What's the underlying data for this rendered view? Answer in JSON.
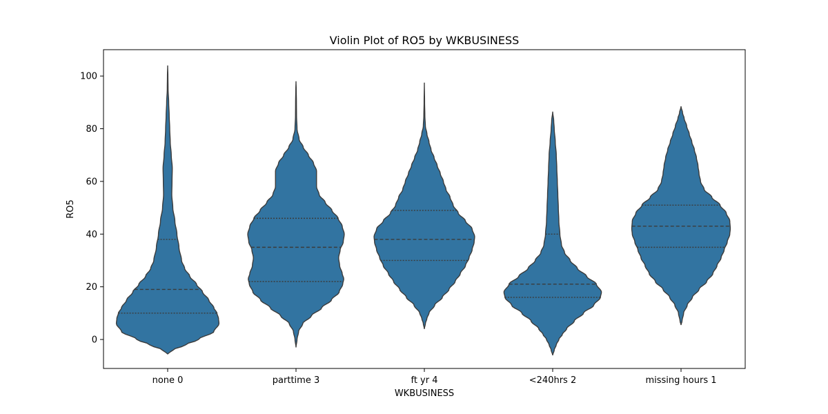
{
  "chart_data": {
    "type": "violin",
    "title": "Violin Plot of RO5 by WKBUSINESS",
    "xlabel": "WKBUSINESS",
    "ylabel": "RO5",
    "ylim": [
      -11,
      110
    ],
    "yticks": [
      0,
      20,
      40,
      60,
      80,
      100
    ],
    "categories": [
      "none 0",
      "parttime 3",
      "ft yr 4",
      "<240hrs 2",
      "missing hours 1"
    ],
    "fill_color": "#3274a1",
    "edge_color": "#3b3b3b",
    "grid": false,
    "violins": [
      {
        "category": "none 0",
        "min": -5.5,
        "max": 104,
        "q1": 10,
        "median": 19,
        "q3": 38,
        "profile": [
          [
            -5.5,
            0
          ],
          [
            -4,
            0.1
          ],
          [
            -2,
            0.35
          ],
          [
            0,
            0.6
          ],
          [
            3,
            0.9
          ],
          [
            6,
            1.0
          ],
          [
            8,
            0.99
          ],
          [
            10,
            0.96
          ],
          [
            12,
            0.9
          ],
          [
            15,
            0.8
          ],
          [
            18,
            0.68
          ],
          [
            21,
            0.56
          ],
          [
            24,
            0.43
          ],
          [
            27,
            0.33
          ],
          [
            30,
            0.27
          ],
          [
            35,
            0.22
          ],
          [
            40,
            0.18
          ],
          [
            45,
            0.14
          ],
          [
            50,
            0.1
          ],
          [
            55,
            0.08
          ],
          [
            60,
            0.085
          ],
          [
            65,
            0.09
          ],
          [
            70,
            0.07
          ],
          [
            75,
            0.05
          ],
          [
            80,
            0.04
          ],
          [
            85,
            0.03
          ],
          [
            90,
            0.02
          ],
          [
            95,
            0.008
          ],
          [
            100,
            0.005
          ],
          [
            104,
            0
          ]
        ]
      },
      {
        "category": "parttime 3",
        "min": -3,
        "max": 98,
        "q1": 22,
        "median": 35,
        "q3": 46,
        "profile": [
          [
            -3,
            0
          ],
          [
            0,
            0.02
          ],
          [
            3,
            0.05
          ],
          [
            6,
            0.13
          ],
          [
            9,
            0.3
          ],
          [
            12,
            0.5
          ],
          [
            15,
            0.69
          ],
          [
            18,
            0.84
          ],
          [
            21,
            0.91
          ],
          [
            23,
            0.93
          ],
          [
            25,
            0.9
          ],
          [
            28,
            0.85
          ],
          [
            31,
            0.83
          ],
          [
            34,
            0.86
          ],
          [
            37,
            0.92
          ],
          [
            40,
            0.94
          ],
          [
            43,
            0.9
          ],
          [
            46,
            0.82
          ],
          [
            49,
            0.7
          ],
          [
            52,
            0.57
          ],
          [
            55,
            0.45
          ],
          [
            58,
            0.4
          ],
          [
            61,
            0.4
          ],
          [
            64,
            0.4
          ],
          [
            67,
            0.34
          ],
          [
            70,
            0.24
          ],
          [
            73,
            0.14
          ],
          [
            76,
            0.06
          ],
          [
            80,
            0.02
          ],
          [
            85,
            0.01
          ],
          [
            90,
            0.008
          ],
          [
            95,
            0.004
          ],
          [
            98,
            0
          ]
        ]
      },
      {
        "category": "ft yr 4",
        "min": 4,
        "max": 97.5,
        "q1": 30,
        "median": 38,
        "q3": 49,
        "profile": [
          [
            4,
            0
          ],
          [
            6,
            0.02
          ],
          [
            8,
            0.05
          ],
          [
            10,
            0.09
          ],
          [
            13,
            0.2
          ],
          [
            16,
            0.35
          ],
          [
            19,
            0.48
          ],
          [
            22,
            0.6
          ],
          [
            25,
            0.7
          ],
          [
            28,
            0.8
          ],
          [
            31,
            0.87
          ],
          [
            34,
            0.93
          ],
          [
            37,
            0.97
          ],
          [
            39,
            0.98
          ],
          [
            42,
            0.93
          ],
          [
            45,
            0.8
          ],
          [
            48,
            0.66
          ],
          [
            51,
            0.56
          ],
          [
            54,
            0.5
          ],
          [
            57,
            0.42
          ],
          [
            60,
            0.37
          ],
          [
            63,
            0.31
          ],
          [
            66,
            0.25
          ],
          [
            69,
            0.19
          ],
          [
            72,
            0.13
          ],
          [
            75,
            0.09
          ],
          [
            78,
            0.05
          ],
          [
            81,
            0.02
          ],
          [
            85,
            0.01
          ],
          [
            90,
            0.005
          ],
          [
            97.5,
            0
          ]
        ]
      },
      {
        "category": "<240hrs 2",
        "min": -6,
        "max": 86.5,
        "q1": 16,
        "median": 21,
        "q3": 40,
        "profile": [
          [
            -6,
            0
          ],
          [
            -4,
            0.03
          ],
          [
            -2,
            0.07
          ],
          [
            0,
            0.12
          ],
          [
            2,
            0.19
          ],
          [
            4,
            0.27
          ],
          [
            7,
            0.42
          ],
          [
            10,
            0.6
          ],
          [
            13,
            0.8
          ],
          [
            16,
            0.93
          ],
          [
            18,
            0.95
          ],
          [
            21,
            0.85
          ],
          [
            24,
            0.66
          ],
          [
            27,
            0.48
          ],
          [
            30,
            0.34
          ],
          [
            33,
            0.23
          ],
          [
            36,
            0.17
          ],
          [
            40,
            0.14
          ],
          [
            45,
            0.12
          ],
          [
            50,
            0.11
          ],
          [
            55,
            0.1
          ],
          [
            60,
            0.09
          ],
          [
            65,
            0.08
          ],
          [
            70,
            0.07
          ],
          [
            75,
            0.05
          ],
          [
            80,
            0.03
          ],
          [
            83,
            0.02
          ],
          [
            86.5,
            0
          ]
        ]
      },
      {
        "category": "missing hours 1",
        "min": 5.5,
        "max": 88.5,
        "q1": 35,
        "median": 43,
        "q3": 51,
        "profile": [
          [
            5.5,
            0
          ],
          [
            7,
            0.02
          ],
          [
            10,
            0.05
          ],
          [
            13,
            0.12
          ],
          [
            16,
            0.22
          ],
          [
            19,
            0.35
          ],
          [
            22,
            0.5
          ],
          [
            25,
            0.62
          ],
          [
            28,
            0.7
          ],
          [
            31,
            0.78
          ],
          [
            34,
            0.84
          ],
          [
            37,
            0.9
          ],
          [
            40,
            0.95
          ],
          [
            42,
            0.96
          ],
          [
            45,
            0.95
          ],
          [
            48,
            0.88
          ],
          [
            51,
            0.76
          ],
          [
            54,
            0.6
          ],
          [
            57,
            0.45
          ],
          [
            60,
            0.38
          ],
          [
            63,
            0.35
          ],
          [
            66,
            0.33
          ],
          [
            69,
            0.3
          ],
          [
            72,
            0.26
          ],
          [
            75,
            0.21
          ],
          [
            78,
            0.16
          ],
          [
            81,
            0.11
          ],
          [
            84,
            0.06
          ],
          [
            86,
            0.03
          ],
          [
            88.5,
            0
          ]
        ]
      }
    ]
  }
}
